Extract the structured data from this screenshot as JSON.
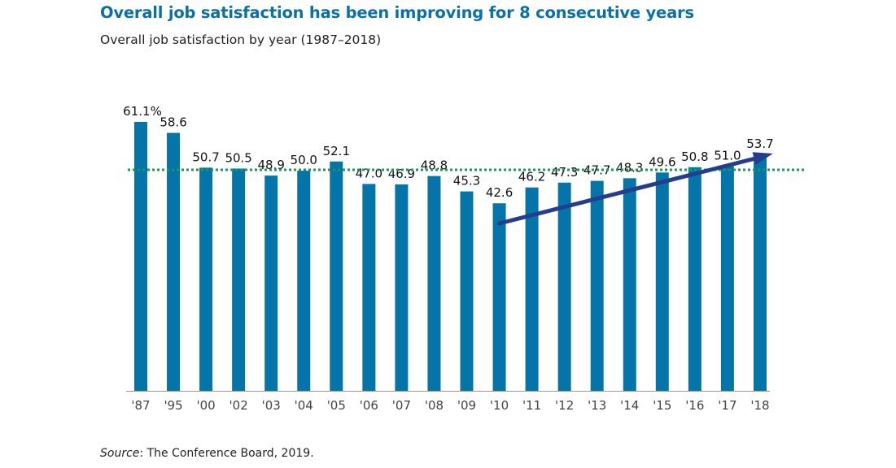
{
  "title": "Overall job satisfaction has been improving for 8 consecutive years",
  "subtitle": "Overall job satisfaction by year (1987–2018)",
  "source_label": "Source",
  "source_text": ": The Conference Board, 2019.",
  "colors": {
    "title": "#0b70a8",
    "bar": "#0574a8",
    "reference_line": "#1a9a55",
    "trend_arrow": "#263c8c"
  },
  "chart_data": {
    "type": "bar",
    "categories": [
      "'87",
      "'95",
      "'00",
      "'02",
      "'03",
      "'04",
      "'05",
      "'06",
      "'07",
      "'08",
      "'09",
      "'10",
      "'11",
      "'12",
      "'13",
      "'14",
      "'15",
      "'16",
      "'17",
      "'18"
    ],
    "values": [
      61.1,
      58.6,
      50.7,
      50.5,
      48.9,
      50.0,
      52.1,
      47.0,
      46.9,
      48.8,
      45.3,
      42.6,
      46.2,
      47.3,
      47.7,
      48.3,
      49.6,
      50.8,
      51.0,
      53.7
    ],
    "data_labels": [
      "61.1%",
      "58.6",
      "50.7",
      "50.5",
      "48.9",
      "50.0",
      "52.1",
      "47.0",
      "46.9",
      "48.8",
      "45.3",
      "42.6",
      "46.2",
      "47.3",
      "47.7",
      "48.3",
      "49.6",
      "50.8",
      "51.0",
      "53.7"
    ],
    "ylim": [
      0,
      61.1
    ],
    "grid": false,
    "reference_line": {
      "value": 50.2,
      "style": "dotted"
    },
    "trend_arrow": {
      "from_category": "'10",
      "to_category": "'18",
      "direction": "up"
    }
  }
}
